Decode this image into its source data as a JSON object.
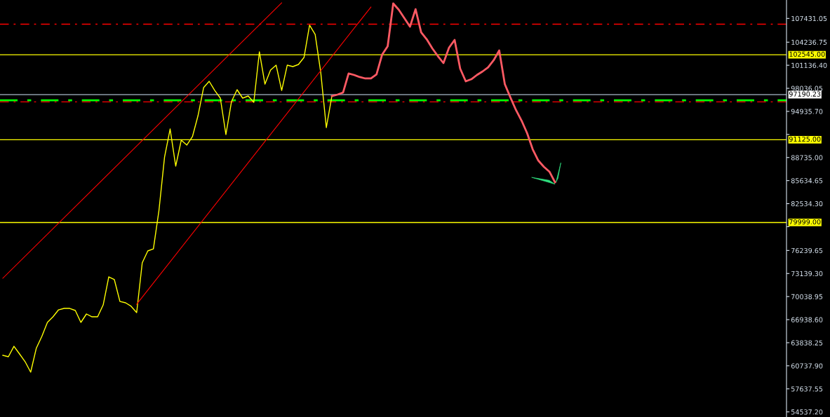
{
  "chart_data": {
    "type": "line",
    "categories": [
      null,
      null,
      null,
      null,
      null,
      null,
      null,
      null,
      null,
      null,
      null,
      null,
      null,
      null,
      null,
      null,
      null,
      null,
      null,
      null,
      null,
      null,
      null,
      null,
      null,
      null,
      null,
      null,
      null,
      null,
      null,
      null,
      null,
      null,
      null,
      null,
      null,
      null,
      null,
      null,
      null,
      null,
      null,
      null,
      null,
      null,
      null,
      null,
      null,
      null,
      null,
      null,
      null,
      null,
      null,
      null,
      null,
      null,
      null,
      null,
      null,
      null,
      null,
      null,
      null,
      null,
      null,
      null,
      null,
      null,
      null,
      null,
      null,
      null,
      null,
      null,
      null,
      null,
      null,
      null,
      null,
      null,
      null,
      null,
      null,
      null,
      null,
      null,
      null,
      null,
      null,
      null,
      null,
      null,
      null,
      null,
      null,
      null,
      null,
      null,
      null,
      null,
      null,
      null,
      null,
      null,
      null,
      null,
      null,
      null,
      null,
      null,
      null,
      null,
      null,
      null,
      null,
      null,
      null,
      null,
      null,
      null,
      null,
      null,
      null,
      null,
      null,
      null,
      null,
      null,
      null,
      null,
      null,
      null,
      null,
      null,
      null,
      null,
      null,
      null,
      null
    ],
    "series": [
      {
        "color": "#ffff00",
        "values": [
          62140,
          61950,
          63360,
          62330,
          61290,
          59880,
          63080,
          64680,
          66570,
          67320,
          68260,
          68450,
          68450,
          68170,
          66570,
          67700,
          67320,
          67320,
          68920,
          72690,
          72320,
          69390,
          69210,
          68740,
          67890,
          74580,
          76180,
          76460,
          81640,
          88800,
          92570,
          87580,
          91070,
          90410,
          91540,
          94360,
          98130,
          98980,
          97750,
          96720,
          91820,
          96250,
          97850,
          96720,
          97000,
          96150,
          102940,
          98600,
          100490,
          101150,
          97750,
          101150,
          100960,
          101240,
          102180,
          106520,
          105290,
          100200,
          92760,
          97000,
          null,
          null,
          null,
          null,
          null,
          null,
          null,
          null,
          null,
          null,
          null,
          null,
          null,
          null,
          null,
          null,
          null,
          null,
          null,
          null,
          null,
          null,
          null,
          null,
          null,
          null,
          null,
          null,
          null,
          null,
          null,
          null,
          null,
          null,
          null,
          null,
          null,
          null,
          null,
          null,
          null,
          null,
          null,
          null,
          null,
          null,
          null,
          null,
          null,
          null,
          null,
          null,
          null,
          null,
          null,
          null,
          null,
          null,
          null,
          null,
          null,
          null,
          null,
          null,
          null,
          null,
          null,
          null,
          null,
          null,
          null,
          null,
          null,
          null,
          null,
          null,
          null,
          null,
          null,
          null,
          null
        ]
      },
      {
        "color": "#ff5a64",
        "values": [
          null,
          null,
          null,
          null,
          null,
          null,
          null,
          null,
          null,
          null,
          null,
          null,
          null,
          null,
          null,
          null,
          null,
          null,
          null,
          null,
          null,
          null,
          null,
          null,
          null,
          null,
          null,
          null,
          null,
          null,
          null,
          null,
          null,
          null,
          null,
          null,
          null,
          null,
          null,
          null,
          null,
          null,
          null,
          null,
          null,
          null,
          null,
          null,
          null,
          null,
          null,
          null,
          null,
          null,
          null,
          null,
          null,
          null,
          null,
          97000,
          97190,
          97470,
          100020,
          99830,
          99550,
          99360,
          99360,
          99920,
          102560,
          103690,
          109440,
          108590,
          107460,
          106330,
          108680,
          105570,
          104630,
          103410,
          102370,
          101430,
          103500,
          104540,
          100680,
          98980,
          99260,
          99830,
          100300,
          100860,
          101810,
          103130,
          98600,
          96810,
          95120,
          93700,
          92010,
          89840,
          88330,
          87490,
          86830,
          85410,
          null,
          null,
          null,
          null,
          null,
          null,
          null,
          null,
          null,
          null,
          null,
          null,
          null,
          null,
          null,
          null,
          null,
          null,
          null,
          null,
          null,
          null,
          null,
          null,
          null,
          null,
          null,
          null,
          null,
          null,
          null,
          null,
          null,
          null,
          null,
          null,
          null,
          null,
          null,
          null,
          null
        ]
      },
      {
        "type": "line",
        "color": "#ff0000",
        "values": [
          72500,
          null,
          null,
          null,
          null,
          null,
          null,
          null,
          null,
          null,
          null,
          null,
          null,
          null,
          null,
          null,
          null,
          null,
          null,
          null,
          null,
          null,
          null,
          null,
          null,
          null,
          null,
          null,
          null,
          null,
          null,
          null,
          null,
          null,
          null,
          null,
          null,
          null,
          null,
          null,
          null,
          null,
          null,
          null,
          null,
          null,
          null,
          null,
          null,
          null,
          109540,
          null,
          null,
          null,
          null,
          null,
          null,
          null,
          null,
          null,
          null,
          null,
          null,
          null,
          null,
          null,
          null,
          null,
          null,
          null,
          null,
          null,
          null,
          null,
          null,
          null,
          null,
          null,
          null,
          null,
          null,
          null,
          null,
          null,
          null,
          null,
          null,
          null,
          null,
          null,
          null,
          null,
          null,
          null,
          null,
          null,
          null,
          null,
          null,
          null,
          null,
          null,
          null,
          null,
          null,
          null,
          null,
          null,
          null,
          null,
          null,
          null,
          null,
          null,
          null,
          null,
          null,
          null,
          null,
          null,
          null,
          null,
          null,
          null,
          null,
          null,
          null,
          null,
          null,
          null,
          null,
          null,
          null,
          null,
          null,
          null,
          null,
          null,
          null,
          null,
          null
        ]
      },
      {
        "type": "line",
        "color": "#ff0000",
        "values": [
          null,
          null,
          null,
          null,
          null,
          null,
          null,
          null,
          null,
          null,
          null,
          null,
          null,
          null,
          null,
          null,
          null,
          null,
          null,
          null,
          null,
          null,
          null,
          null,
          69010,
          null,
          null,
          null,
          null,
          null,
          null,
          null,
          null,
          null,
          null,
          null,
          null,
          null,
          null,
          null,
          null,
          null,
          null,
          null,
          null,
          null,
          null,
          null,
          null,
          null,
          null,
          null,
          null,
          null,
          null,
          null,
          null,
          null,
          null,
          null,
          null,
          null,
          null,
          null,
          null,
          null,
          108970,
          null,
          null,
          null,
          null,
          null,
          null,
          null,
          null,
          null,
          null,
          null,
          null,
          null,
          null,
          null,
          null,
          null,
          null,
          null,
          null,
          null,
          null,
          null,
          null,
          null,
          null,
          null,
          null,
          null,
          null,
          null,
          null,
          null,
          null,
          null,
          null,
          null,
          null,
          null,
          null,
          null,
          null,
          null,
          null,
          null,
          null,
          null,
          null,
          null,
          null,
          null,
          null,
          null,
          null,
          null,
          null,
          null,
          null,
          null,
          null,
          null,
          null,
          null,
          null,
          null,
          null,
          null,
          null,
          null,
          null,
          null,
          null,
          null,
          null
        ]
      }
    ],
    "ylim": [
      53850,
      109910
    ],
    "yticks": [
      {
        "value": 107431.05,
        "label": "107431.05"
      },
      {
        "value": 104236.75,
        "label": "104236.75"
      },
      {
        "value": 101136.4,
        "label": "101136.40"
      },
      {
        "value": 98036.05,
        "label": "98036.05"
      },
      {
        "value": 94935.7,
        "label": "94935.70"
      },
      {
        "value": 91835.35,
        "label": null
      },
      {
        "value": 88735.0,
        "label": "88735.00"
      },
      {
        "value": 85634.65,
        "label": "85634.65"
      },
      {
        "value": 82534.3,
        "label": "82534.30"
      },
      {
        "value": 79433.95,
        "label": null
      },
      {
        "value": 76239.65,
        "label": "76239.65"
      },
      {
        "value": 73139.3,
        "label": "73139.30"
      },
      {
        "value": 70038.95,
        "label": "70038.95"
      },
      {
        "value": 66938.6,
        "label": "66938.60"
      },
      {
        "value": 63838.25,
        "label": "63838.25"
      },
      {
        "value": 60737.9,
        "label": "60737.90"
      },
      {
        "value": 57637.55,
        "label": "57637.55"
      },
      {
        "value": 54537.2,
        "label": "54537.20"
      }
    ],
    "ref_lines": [
      {
        "axis": "y",
        "value": 106658,
        "color": "#ff0000",
        "line_style": "dashed"
      },
      {
        "axis": "y",
        "value": 102545.0,
        "label": "102545.00",
        "color": "#ffff00",
        "line_style": "solid"
      },
      {
        "axis": "y",
        "value": 97190.23,
        "label": "97190.23",
        "color": "#8c9aa8",
        "line_style": "solid"
      },
      {
        "axis": "y",
        "value": 96426,
        "color": "#00ff00",
        "line_style": "dashed"
      },
      {
        "axis": "y",
        "value": 96209,
        "color": "#ff0000",
        "line_style": "dashed"
      },
      {
        "axis": "y",
        "value": 91125.0,
        "label": "91125.00",
        "color": "#ffff00",
        "line_style": "solid"
      },
      {
        "axis": "y",
        "value": 79999.0,
        "label": "79999.00",
        "color": "#ffff00",
        "line_style": "solid"
      }
    ],
    "tick_labels": "y"
  }
}
